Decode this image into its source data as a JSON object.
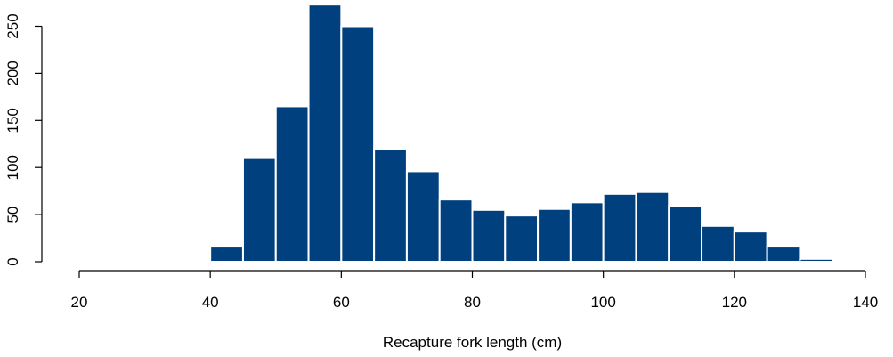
{
  "chart_data": {
    "type": "bar",
    "subtype": "histogram",
    "title": "",
    "xlabel": "Recapture fork length (cm)",
    "ylabel": "",
    "xlim": [
      20,
      140
    ],
    "ylim": [
      0,
      270
    ],
    "x_ticks": [
      20,
      40,
      60,
      80,
      100,
      120,
      140
    ],
    "y_ticks": [
      0,
      50,
      100,
      150,
      200,
      250
    ],
    "bin_width": 5,
    "bins": [
      {
        "start": 40,
        "end": 45,
        "count": 16
      },
      {
        "start": 45,
        "end": 50,
        "count": 110
      },
      {
        "start": 50,
        "end": 55,
        "count": 165
      },
      {
        "start": 55,
        "end": 60,
        "count": 273
      },
      {
        "start": 60,
        "end": 65,
        "count": 250
      },
      {
        "start": 65,
        "end": 70,
        "count": 120
      },
      {
        "start": 70,
        "end": 75,
        "count": 96
      },
      {
        "start": 75,
        "end": 80,
        "count": 66
      },
      {
        "start": 80,
        "end": 85,
        "count": 55
      },
      {
        "start": 85,
        "end": 90,
        "count": 49
      },
      {
        "start": 90,
        "end": 95,
        "count": 56
      },
      {
        "start": 95,
        "end": 100,
        "count": 63
      },
      {
        "start": 100,
        "end": 105,
        "count": 72
      },
      {
        "start": 105,
        "end": 110,
        "count": 74
      },
      {
        "start": 110,
        "end": 115,
        "count": 59
      },
      {
        "start": 115,
        "end": 120,
        "count": 38
      },
      {
        "start": 120,
        "end": 125,
        "count": 32
      },
      {
        "start": 125,
        "end": 130,
        "count": 16
      },
      {
        "start": 130,
        "end": 135,
        "count": 3
      }
    ],
    "bar_color": "#00407f",
    "bar_edge_color": "#ffffff",
    "grid": false
  }
}
